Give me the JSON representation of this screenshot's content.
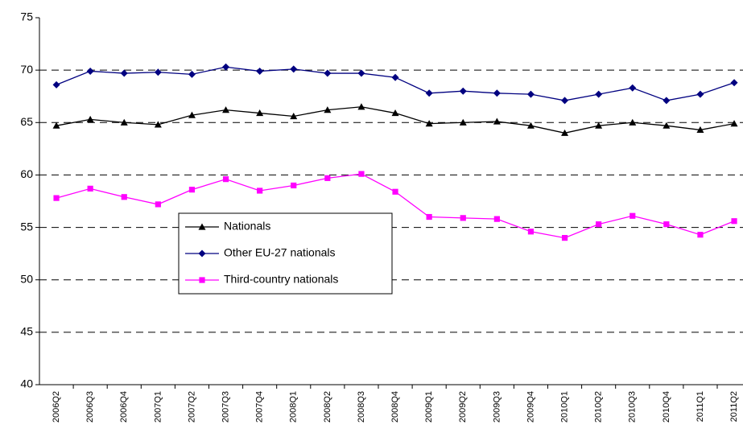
{
  "chart_data": {
    "type": "line",
    "categories": [
      "2006Q2",
      "2006Q3",
      "2006Q4",
      "2007Q1",
      "2007Q2",
      "2007Q3",
      "2007Q4",
      "2008Q1",
      "2008Q2",
      "2008Q3",
      "2008Q4",
      "2009Q1",
      "2009Q2",
      "2009Q3",
      "2009Q4",
      "2010Q1",
      "2010Q2",
      "2010Q3",
      "2010Q4",
      "2011Q1",
      "2011Q2"
    ],
    "series": [
      {
        "name": "Nationals",
        "color": "#000000",
        "marker": "triangle",
        "values": [
          64.7,
          65.3,
          65.0,
          64.8,
          65.7,
          66.2,
          65.9,
          65.6,
          66.2,
          66.5,
          65.9,
          64.9,
          65.0,
          65.1,
          64.7,
          64.0,
          64.7,
          65.0,
          64.7,
          64.3,
          64.9
        ]
      },
      {
        "name": "Other EU-27 nationals",
        "color": "#000080",
        "marker": "diamond",
        "values": [
          68.6,
          69.9,
          69.7,
          69.8,
          69.6,
          70.3,
          69.9,
          70.1,
          69.7,
          69.7,
          69.3,
          67.8,
          68.0,
          67.8,
          67.7,
          67.1,
          67.7,
          68.3,
          67.1,
          67.7,
          68.8
        ]
      },
      {
        "name": "Third-country nationals",
        "color": "#ff00ff",
        "marker": "square",
        "values": [
          57.8,
          58.7,
          57.9,
          57.2,
          58.6,
          59.6,
          58.5,
          59.0,
          59.7,
          60.1,
          58.4,
          56.0,
          55.9,
          55.8,
          54.6,
          54.0,
          55.3,
          56.1,
          55.3,
          54.3,
          55.6
        ]
      }
    ],
    "ylim": [
      40,
      75
    ],
    "yticks": [
      40,
      45,
      50,
      55,
      60,
      65,
      70,
      75
    ],
    "grid": true
  }
}
